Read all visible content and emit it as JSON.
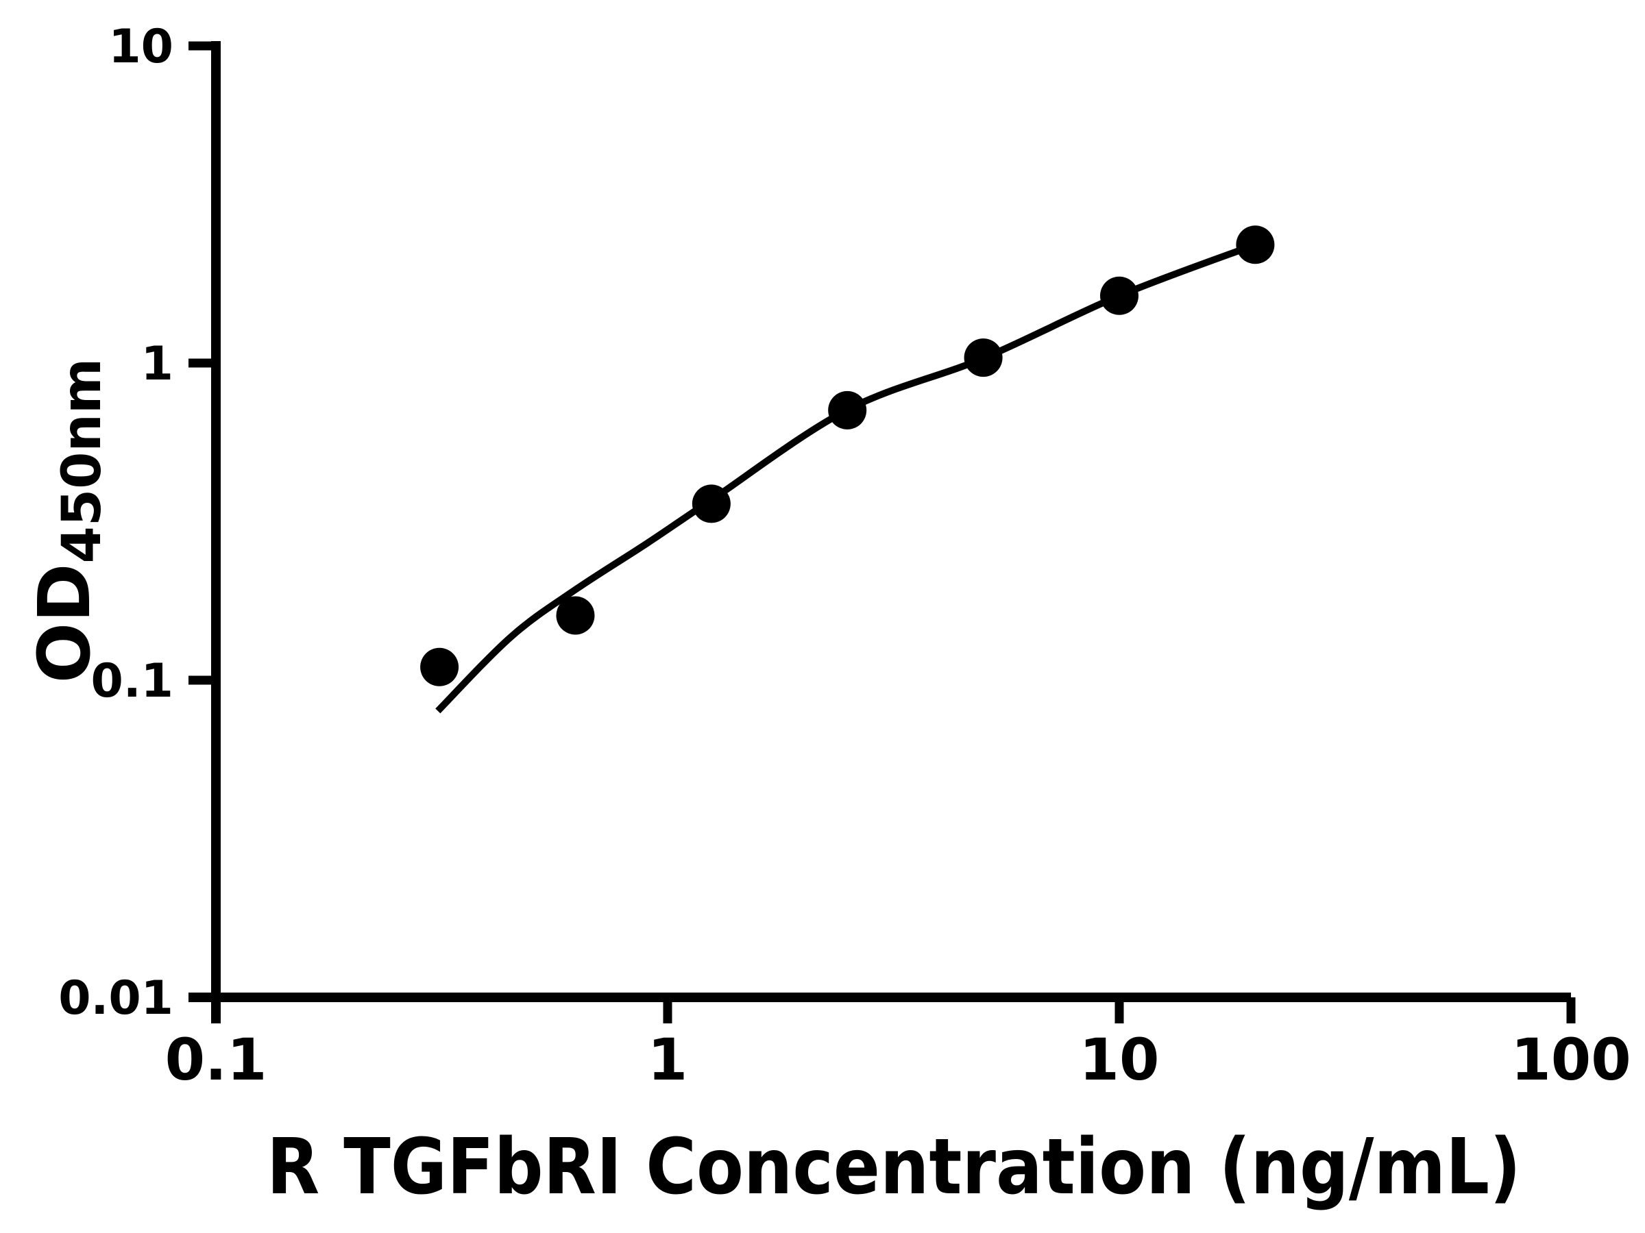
{
  "figure": {
    "background_color": "#ffffff",
    "ink_color": "#000000"
  },
  "chart_data": {
    "type": "scatter",
    "title": "",
    "xlabel": "R TGFbRI Concentration (ng/mL)",
    "ylabel_main": "OD",
    "ylabel_sub": "450nm",
    "x_scale": "log",
    "y_scale": "log",
    "xlim": [
      0.1,
      100
    ],
    "ylim": [
      0.01,
      10
    ],
    "x_tick_labels": [
      "0.1",
      "1",
      "10",
      "100"
    ],
    "y_tick_labels": [
      "10",
      "1",
      "0.1",
      "0.01"
    ],
    "grid": false,
    "legend": "none",
    "series": [
      {
        "name": "standard curve points",
        "marker": "filled-circle",
        "color": "#000000",
        "x": [
          0.3125,
          0.625,
          1.25,
          2.5,
          5,
          10,
          20
        ],
        "y": [
          0.11,
          0.16,
          0.36,
          0.71,
          1.04,
          1.63,
          2.36
        ]
      }
    ],
    "fit_curve": {
      "name": "fitted curve",
      "color": "#000000",
      "x": [
        0.31,
        0.45,
        0.625,
        0.9,
        1.25,
        2.5,
        5,
        10,
        20
      ],
      "y": [
        0.08,
        0.137,
        0.193,
        0.27,
        0.37,
        0.712,
        1.035,
        1.63,
        2.36
      ]
    }
  }
}
